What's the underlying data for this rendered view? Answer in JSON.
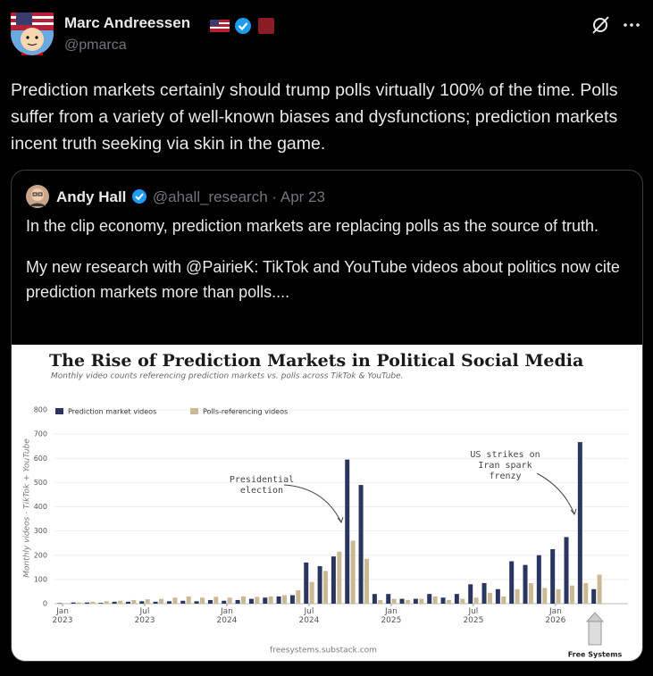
{
  "tweet": {
    "author": {
      "name": "Marc Andreessen",
      "handle": "@pmarca"
    },
    "text": "Prediction markets certainly should trump polls virtually 100% of the time. Polls suffer from a variety of well-known biases and dysfunctions; prediction markets incent truth seeking via skin in the game."
  },
  "quote": {
    "author": {
      "name": "Andy Hall",
      "handle": "@ahall_research"
    },
    "separator": "·",
    "date": "Apr 23",
    "paragraphs": [
      "In the clip economy, prediction markets are replacing polls as the source of truth.",
      "My new research with @PairieK: TikTok and YouTube videos about politics now cite prediction markets more than polls...."
    ]
  },
  "chart_data": {
    "type": "bar",
    "title": "The Rise of Prediction Markets in Political Social Media",
    "subtitle": "Monthly video counts referencing prediction markets vs. polls across TikTok & YouTube.",
    "ylabel": "Monthly videos · TikTok + YouTube",
    "categories": [
      "Jan 2023",
      null,
      null,
      null,
      null,
      null,
      "Jul 2023",
      null,
      null,
      null,
      null,
      null,
      "Jan 2024",
      null,
      null,
      null,
      null,
      null,
      "Jul 2024",
      null,
      null,
      null,
      null,
      null,
      "Jan 2025",
      null,
      null,
      null,
      null,
      null,
      "Jul 2025",
      null,
      null,
      null,
      null,
      null,
      "Jan 2026",
      null,
      null,
      null
    ],
    "series": [
      {
        "name": "Prediction market videos",
        "color": "#2b3660",
        "values": [
          2,
          5,
          5,
          3,
          8,
          8,
          10,
          8,
          10,
          12,
          10,
          15,
          12,
          15,
          20,
          25,
          30,
          35,
          170,
          155,
          195,
          595,
          490,
          40,
          40,
          20,
          20,
          40,
          25,
          40,
          80,
          85,
          60,
          175,
          160,
          200,
          225,
          275,
          667,
          60
        ]
      },
      {
        "name": "Polls-referencing videos",
        "color": "#cbb894",
        "values": [
          2,
          5,
          8,
          10,
          12,
          15,
          18,
          20,
          25,
          30,
          25,
          28,
          25,
          30,
          28,
          30,
          35,
          55,
          90,
          135,
          215,
          260,
          185,
          15,
          20,
          15,
          20,
          30,
          15,
          20,
          25,
          45,
          30,
          60,
          85,
          65,
          60,
          75,
          85,
          120
        ]
      }
    ],
    "ylim": [
      0,
      800
    ],
    "yticks": [
      0,
      100,
      200,
      300,
      400,
      500,
      600,
      700,
      800
    ],
    "grid": true,
    "legend": "top-left",
    "annotations": [
      "Presidential election",
      "US strikes on Iran spark frenzy"
    ],
    "source": "freesystems.substack.com",
    "brand": "Free Systems"
  }
}
